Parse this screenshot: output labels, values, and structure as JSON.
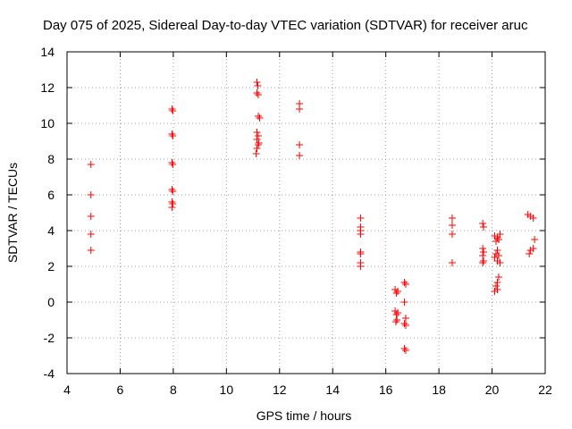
{
  "chart_data": {
    "type": "scatter",
    "title": "Day 075 of 2025, Sidereal Day-to-day VTEC variation (SDTVAR) for receiver aruc",
    "xlabel": "GPS time / hours",
    "ylabel": "SDTVAR / TECUs",
    "xlim": [
      4,
      22
    ],
    "ylim": [
      -4,
      14
    ],
    "xticks": [
      4,
      6,
      8,
      10,
      12,
      14,
      16,
      18,
      20,
      22
    ],
    "yticks": [
      -4,
      -2,
      0,
      2,
      4,
      6,
      8,
      10,
      12,
      14
    ],
    "grid": true,
    "marker": "+",
    "color": "#ff0000",
    "series": [
      {
        "name": "SDTVAR",
        "points": [
          [
            4.9,
            7.7
          ],
          [
            4.9,
            6.0
          ],
          [
            4.9,
            4.8
          ],
          [
            4.9,
            3.8
          ],
          [
            4.9,
            2.9
          ],
          [
            7.95,
            10.8
          ],
          [
            7.98,
            10.7
          ],
          [
            7.95,
            9.4
          ],
          [
            7.98,
            9.3
          ],
          [
            7.95,
            7.8
          ],
          [
            7.98,
            7.7
          ],
          [
            7.95,
            6.3
          ],
          [
            7.98,
            6.2
          ],
          [
            7.95,
            5.6
          ],
          [
            7.98,
            5.5
          ],
          [
            7.95,
            5.3
          ],
          [
            11.15,
            12.3
          ],
          [
            11.18,
            12.1
          ],
          [
            11.15,
            11.7
          ],
          [
            11.2,
            11.6
          ],
          [
            11.25,
            10.3
          ],
          [
            11.2,
            10.4
          ],
          [
            11.15,
            9.5
          ],
          [
            11.2,
            9.3
          ],
          [
            11.15,
            9.1
          ],
          [
            11.22,
            8.9
          ],
          [
            11.15,
            8.6
          ],
          [
            11.2,
            8.8
          ],
          [
            11.12,
            8.3
          ],
          [
            12.75,
            11.1
          ],
          [
            12.75,
            10.8
          ],
          [
            12.75,
            8.8
          ],
          [
            12.75,
            8.2
          ],
          [
            15.05,
            4.7
          ],
          [
            15.05,
            4.2
          ],
          [
            15.05,
            4.0
          ],
          [
            15.05,
            3.8
          ],
          [
            15.05,
            2.8
          ],
          [
            15.05,
            2.7
          ],
          [
            15.05,
            2.2
          ],
          [
            15.05,
            2.0
          ],
          [
            16.35,
            0.7
          ],
          [
            16.4,
            0.5
          ],
          [
            16.45,
            0.6
          ],
          [
            16.35,
            -0.5
          ],
          [
            16.4,
            -0.7
          ],
          [
            16.45,
            -0.6
          ],
          [
            16.38,
            -1.1
          ],
          [
            16.42,
            -1.0
          ],
          [
            16.7,
            1.1
          ],
          [
            16.75,
            1.0
          ],
          [
            16.7,
            0.0
          ],
          [
            16.75,
            -0.9
          ],
          [
            16.7,
            -1.2
          ],
          [
            16.75,
            -1.3
          ],
          [
            16.7,
            -2.6
          ],
          [
            16.75,
            -2.7
          ],
          [
            18.5,
            4.7
          ],
          [
            18.5,
            4.3
          ],
          [
            18.5,
            3.8
          ],
          [
            18.5,
            2.2
          ],
          [
            19.65,
            4.4
          ],
          [
            19.68,
            4.2
          ],
          [
            19.65,
            3.0
          ],
          [
            19.68,
            2.8
          ],
          [
            19.65,
            2.6
          ],
          [
            19.68,
            2.3
          ],
          [
            19.65,
            2.2
          ],
          [
            20.1,
            3.7
          ],
          [
            20.2,
            3.6
          ],
          [
            20.3,
            3.8
          ],
          [
            20.15,
            3.4
          ],
          [
            20.25,
            3.5
          ],
          [
            20.2,
            2.9
          ],
          [
            20.15,
            2.7
          ],
          [
            20.25,
            2.6
          ],
          [
            20.1,
            2.5
          ],
          [
            20.2,
            2.3
          ],
          [
            20.3,
            2.2
          ],
          [
            20.25,
            1.4
          ],
          [
            20.2,
            1.1
          ],
          [
            20.15,
            0.9
          ],
          [
            20.1,
            0.6
          ],
          [
            20.2,
            0.7
          ],
          [
            21.35,
            4.9
          ],
          [
            21.45,
            4.8
          ],
          [
            21.55,
            4.7
          ],
          [
            21.6,
            3.5
          ],
          [
            21.55,
            3.0
          ],
          [
            21.45,
            2.9
          ],
          [
            21.4,
            2.7
          ]
        ]
      }
    ]
  }
}
